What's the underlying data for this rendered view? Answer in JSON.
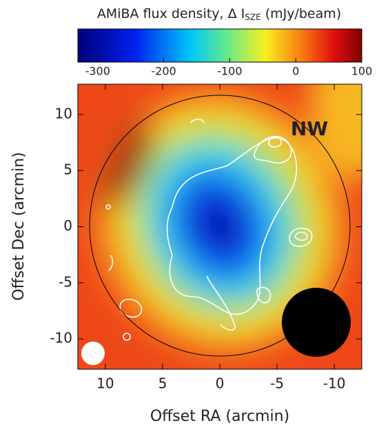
{
  "chart_data": {
    "type": "image",
    "xlabel": "Offset RA (arcmin)",
    "ylabel": "Offset Dec (arcmin)",
    "xlim": [
      12.4,
      -12.4
    ],
    "ylim": [
      -12.7,
      12.7
    ],
    "xticks": [
      10,
      5,
      0,
      -5,
      -10
    ],
    "yticks": [
      -10,
      -5,
      0,
      5,
      10
    ],
    "annotations": [
      "NW"
    ],
    "colorbar": {
      "label": [
        "AMiBA flux density, Δ I",
        "SZE",
        " (mJy/beam)"
      ],
      "lim": [
        -330,
        100
      ],
      "ticks": [
        -300,
        -200,
        -100,
        0,
        100
      ]
    }
  }
}
